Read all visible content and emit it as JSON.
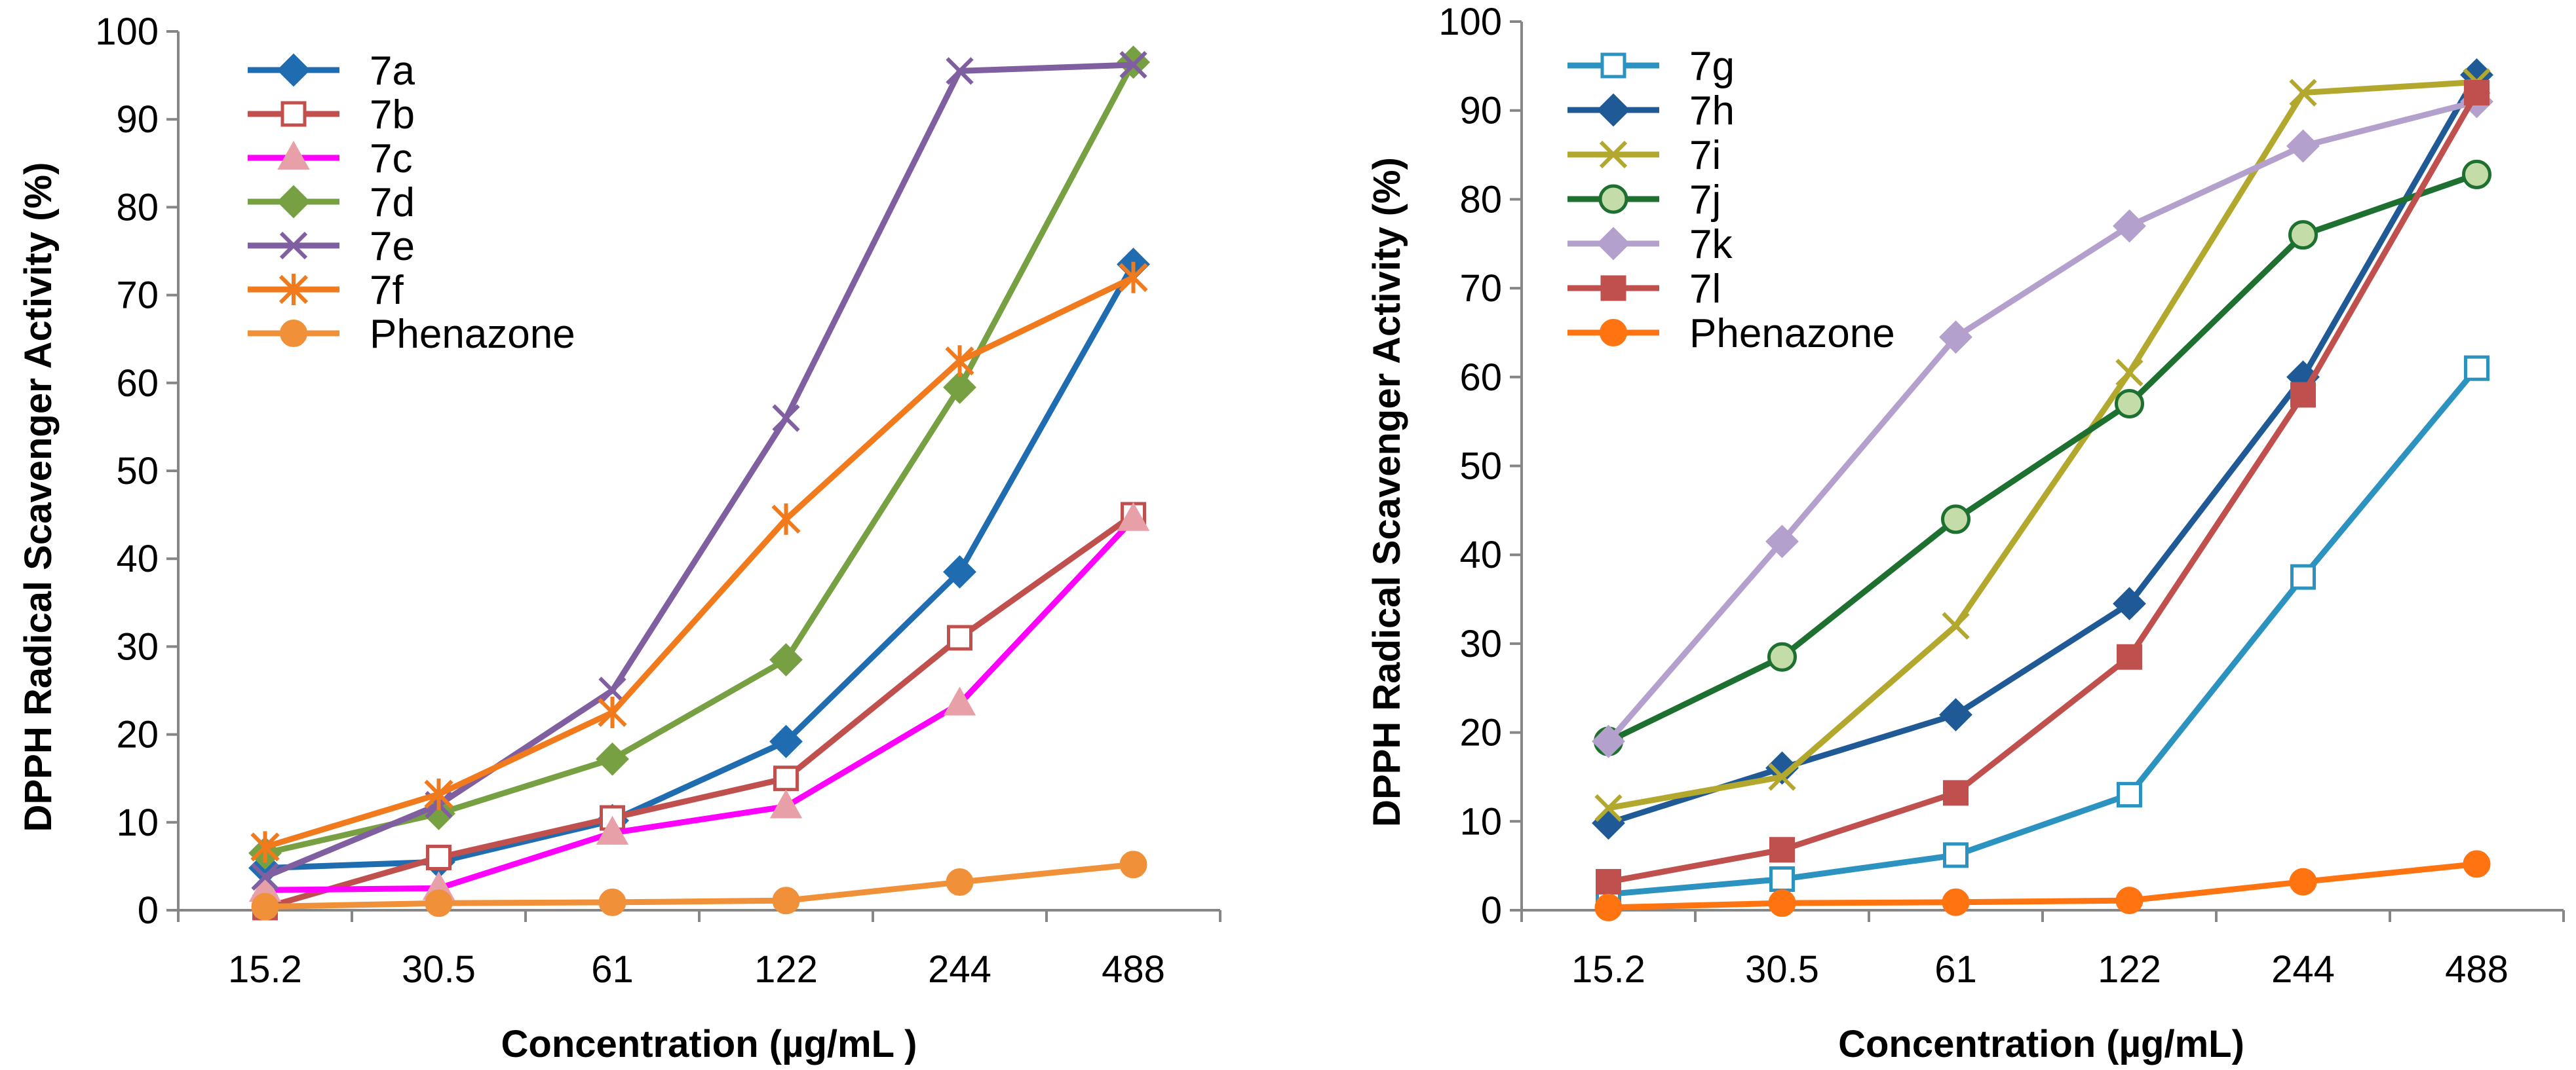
{
  "chart_data": [
    {
      "type": "line",
      "title": "",
      "xlabel": "Concentration (µg/mL )",
      "ylabel": "DPPH Radical Scavenger Activity  (%)",
      "categories": [
        "15.2",
        "30.5",
        "61",
        "122",
        "244",
        "488"
      ],
      "ylim": [
        0,
        100
      ],
      "yticks": [
        "0",
        "10",
        "20",
        "30",
        "40",
        "50",
        "60",
        "70",
        "80",
        "90",
        "100"
      ],
      "grid": false,
      "legend_position": "top-left",
      "series": [
        {
          "name": "7a",
          "values": [
            4.8,
            5.5,
            10.2,
            19.2,
            38.5,
            73.5
          ],
          "color": "#1F6DB0",
          "marker": "diamond"
        },
        {
          "name": "7b",
          "values": [
            0.3,
            6.0,
            10.5,
            15.0,
            31.0,
            45.0
          ],
          "color": "#C0504D",
          "marker": "square-open"
        },
        {
          "name": "7c",
          "values": [
            2.3,
            2.5,
            8.8,
            11.8,
            23.5,
            44.5
          ],
          "color": "#FF00FF",
          "marker": "triangle"
        },
        {
          "name": "7d",
          "values": [
            6.5,
            11.0,
            17.2,
            28.5,
            59.5,
            96.5
          ],
          "color": "#77A042",
          "marker": "diamond"
        },
        {
          "name": "7e",
          "values": [
            3.8,
            12.0,
            25.0,
            56.0,
            95.5,
            96.2
          ],
          "color": "#7F5FA0",
          "marker": "x"
        },
        {
          "name": "7f",
          "values": [
            7.2,
            13.2,
            22.5,
            44.5,
            62.5,
            72.0
          ],
          "color": "#F07A1C",
          "marker": "asterisk"
        },
        {
          "name": "Phenazone",
          "values": [
            0.4,
            0.8,
            0.9,
            1.1,
            3.2,
            5.2
          ],
          "color": "#F0913A",
          "marker": "circle"
        }
      ]
    },
    {
      "type": "line",
      "title": "",
      "xlabel": "Concentration (µg/mL)",
      "ylabel": "DPPH Radical Scavenger Activity (%)",
      "categories": [
        "15.2",
        "30.5",
        "61",
        "122",
        "244",
        "488"
      ],
      "ylim": [
        0,
        100
      ],
      "yticks": [
        "0",
        "10",
        "20",
        "30",
        "40",
        "50",
        "60",
        "70",
        "80",
        "90",
        "100"
      ],
      "grid": false,
      "legend_position": "top-left",
      "series": [
        {
          "name": "7g",
          "values": [
            1.8,
            3.5,
            6.2,
            13.0,
            37.5,
            61.0
          ],
          "color": "#2C93C0",
          "marker": "square-open"
        },
        {
          "name": "7h",
          "values": [
            9.8,
            16.0,
            22.0,
            34.5,
            60.0,
            94.0
          ],
          "color": "#1F5A96",
          "marker": "diamond"
        },
        {
          "name": "7i",
          "values": [
            11.5,
            15.0,
            32.0,
            60.5,
            92.0,
            93.2
          ],
          "color": "#B2A82E",
          "marker": "x"
        },
        {
          "name": "7j",
          "values": [
            19.0,
            28.5,
            44.0,
            57.0,
            76.0,
            82.8
          ],
          "color": "#1E7030",
          "marker": "circle-open"
        },
        {
          "name": "7k",
          "values": [
            19.0,
            41.5,
            64.5,
            77.0,
            86.0,
            91.0
          ],
          "color": "#B4A0CC",
          "marker": "diamond"
        },
        {
          "name": "7l",
          "values": [
            3.2,
            6.8,
            13.2,
            28.5,
            58.0,
            92.0
          ],
          "color": "#C0504D",
          "marker": "square"
        },
        {
          "name": "Phenazone",
          "values": [
            0.3,
            0.8,
            0.9,
            1.1,
            3.2,
            5.2
          ],
          "color": "#FF7410",
          "marker": "circle"
        }
      ]
    }
  ]
}
